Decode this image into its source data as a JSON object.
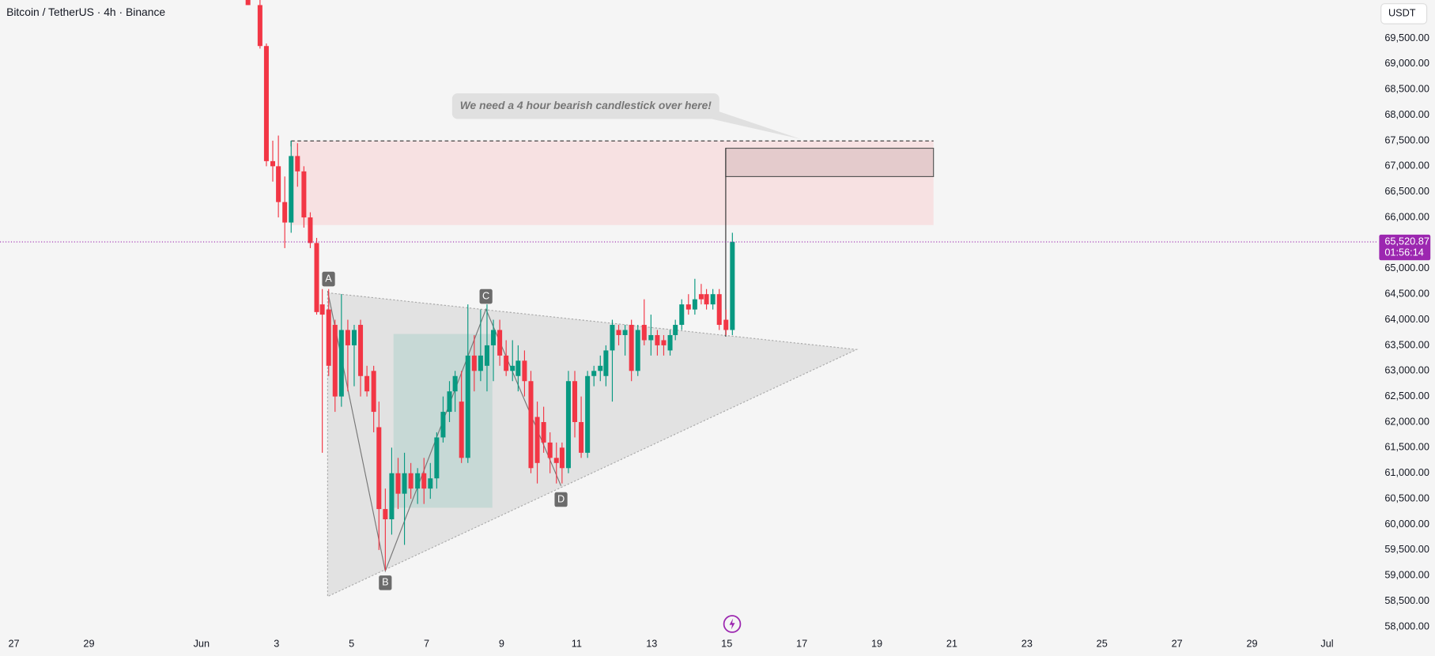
{
  "chart_data": {
    "type": "candlestick",
    "title": "Bitcoin / TetherUS · 4h · Binance",
    "currency": "USDT",
    "annotation": "We need a 4 hour bearish candlestick over here!",
    "pattern_labels": [
      "A",
      "B",
      "C",
      "D"
    ],
    "up_color": "#089981",
    "down_color": "#f23645",
    "x": [
      2.24,
      2.56,
      2.73,
      2.9,
      3.05,
      3.22,
      3.39,
      3.56,
      3.73,
      3.9,
      4.07,
      4.22,
      4.39,
      4.56,
      4.73,
      4.9,
      5.07,
      5.24,
      5.41,
      5.59,
      5.73,
      5.9,
      6.07,
      6.24,
      6.41,
      6.58,
      6.76,
      6.93,
      7.1,
      7.27,
      7.44,
      7.61,
      7.76,
      7.93,
      8.1,
      8.27,
      8.44,
      8.61,
      8.78,
      8.95,
      9.12,
      9.29,
      9.44,
      9.61,
      9.78,
      9.95,
      10.12,
      10.29,
      10.46,
      10.61,
      10.78,
      10.95,
      11.12,
      11.29,
      11.46,
      11.63,
      11.78,
      11.95,
      12.12,
      12.29,
      12.46,
      12.63,
      12.8,
      12.98,
      13.15,
      13.32,
      13.49,
      13.63,
      13.8,
      13.98,
      14.15,
      14.32,
      14.46,
      14.63,
      14.8,
      14.98,
      15.15
    ],
    "open": [
      70300,
      70150,
      69350,
      67100,
      67000,
      66300,
      65900,
      67200,
      66900,
      66000,
      65500,
      64300,
      64200,
      63900,
      62500,
      63800,
      63500,
      63900,
      62900,
      63000,
      61900,
      60300,
      60100,
      61000,
      60600,
      61000,
      60700,
      61000,
      60700,
      60900,
      61700,
      62200,
      62600,
      62400,
      61300,
      63300,
      63000,
      63100,
      63500,
      63800,
      63300,
      63000,
      62900,
      63200,
      62800,
      62100,
      62000,
      61600,
      61300,
      61500,
      61100,
      62800,
      62000,
      61400,
      62900,
      63000,
      62900,
      63400,
      63800,
      63700,
      63900,
      63000,
      63900,
      63600,
      63700,
      63600,
      63400,
      63700,
      63900,
      64300,
      64200,
      64500,
      64500,
      64300,
      64500,
      64000,
      63800
    ],
    "high": [
      70500,
      70250,
      69400,
      67500,
      67600,
      66800,
      67500,
      67450,
      67000,
      66100,
      65600,
      64600,
      64600,
      64000,
      64500,
      64000,
      63900,
      64000,
      63100,
      63100,
      62400,
      60700,
      61500,
      61300,
      61400,
      61200,
      61100,
      61300,
      61200,
      61800,
      62500,
      62800,
      63000,
      63000,
      64300,
      63700,
      64200,
      64300,
      64000,
      64000,
      63600,
      63600,
      63500,
      63400,
      63000,
      62400,
      62300,
      61800,
      61600,
      61600,
      63000,
      63000,
      62500,
      63000,
      63100,
      63300,
      63500,
      64000,
      63900,
      63900,
      64000,
      63900,
      64400,
      64100,
      63800,
      63700,
      63800,
      64000,
      64400,
      64500,
      64800,
      64700,
      64600,
      64600,
      64600,
      64200,
      65700
    ],
    "low": [
      70150,
      69300,
      67000,
      66700,
      66000,
      65400,
      65700,
      66600,
      65800,
      65400,
      64100,
      61400,
      62900,
      62200,
      62300,
      62600,
      62700,
      62500,
      62500,
      61800,
      59500,
      59100,
      59800,
      60300,
      59600,
      60500,
      60400,
      60400,
      60500,
      60700,
      61600,
      62000,
      62200,
      61200,
      61200,
      62600,
      62800,
      62600,
      62800,
      63100,
      62900,
      62800,
      62600,
      62500,
      61000,
      60800,
      61400,
      61000,
      60800,
      60800,
      61000,
      61700,
      61300,
      61300,
      62700,
      62800,
      62700,
      62400,
      63500,
      63300,
      62800,
      62900,
      63500,
      63300,
      63300,
      63300,
      63300,
      63600,
      63800,
      64100,
      64100,
      64300,
      64200,
      64200,
      63800,
      63700,
      63700
    ],
    "close": [
      70150,
      69350,
      67100,
      67000,
      66300,
      65900,
      67200,
      66900,
      66000,
      65500,
      64150,
      64100,
      63100,
      62500,
      63800,
      63500,
      63800,
      62900,
      62600,
      62200,
      60300,
      60100,
      61000,
      60600,
      61000,
      60700,
      61000,
      60700,
      60900,
      61700,
      62200,
      62600,
      62900,
      61300,
      63300,
      63000,
      63300,
      63500,
      63800,
      63300,
      63000,
      63100,
      63200,
      62800,
      61100,
      61200,
      61600,
      61300,
      61200,
      61100,
      62800,
      62000,
      61400,
      62900,
      63000,
      63100,
      63400,
      63900,
      63700,
      63800,
      63000,
      63800,
      63600,
      63700,
      63500,
      63500,
      63700,
      63900,
      64300,
      64200,
      64400,
      64400,
      64300,
      64500,
      63900,
      63800,
      65520.87
    ],
    "xlim": [
      -4.37,
      32.34
    ],
    "ylim": [
      57464,
      70249
    ],
    "xticks": [
      {
        "value": -4,
        "label": "27"
      },
      {
        "value": -2,
        "label": "29"
      },
      {
        "value": 1,
        "label": "Jun"
      },
      3,
      5,
      7,
      9,
      11,
      13,
      15,
      17,
      19,
      21,
      23,
      25,
      27,
      29,
      {
        "value": 31,
        "label": "Jul"
      }
    ],
    "yticks": [
      {
        "value": 58000,
        "label": "58,000.00"
      },
      {
        "value": 58500,
        "label": "58,500.00"
      },
      {
        "value": 59000,
        "label": "59,000.00"
      },
      {
        "value": 59500,
        "label": "59,500.00"
      },
      {
        "value": 60000,
        "label": "60,000.00"
      },
      {
        "value": 60500,
        "label": "60,500.00"
      },
      {
        "value": 61000,
        "label": "61,000.00"
      },
      {
        "value": 61500,
        "label": "61,500.00"
      },
      {
        "value": 62000,
        "label": "62,000.00"
      },
      {
        "value": 62500,
        "label": "62,500.00"
      },
      {
        "value": 63000,
        "label": "63,000.00"
      },
      {
        "value": 63500,
        "label": "63,500.00"
      },
      {
        "value": 64000,
        "label": "64,000.00"
      },
      {
        "value": 64500,
        "label": "64,500.00"
      },
      {
        "value": 65000,
        "label": "65,000.00"
      },
      {
        "value": 65500,
        "label": "65,500.00"
      },
      {
        "value": 66000,
        "label": "66,000.00"
      },
      {
        "value": 66500,
        "label": "66,500.00"
      },
      {
        "value": 67000,
        "label": "67,000.00"
      },
      {
        "value": 67500,
        "label": "67,500.00"
      },
      {
        "value": 68000,
        "label": "68,000.00"
      },
      {
        "value": 68500,
        "label": "68,500.00"
      },
      {
        "value": 69000,
        "label": "69,000.00"
      },
      {
        "value": 69500,
        "label": "69,500.00"
      }
    ],
    "last_price": {
      "value": 65520.87,
      "label": "65,520.87"
    },
    "countdown": "01:56:14",
    "last_price_color": "#9c27b0"
  }
}
